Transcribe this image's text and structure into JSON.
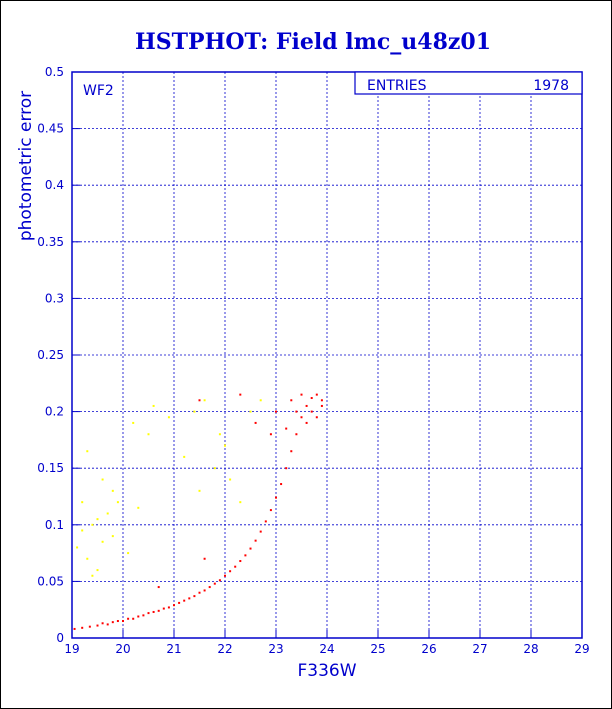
{
  "chart_data": {
    "type": "scatter",
    "title": "HSTPHOT: Field lmc_u48z01",
    "xlabel": "F336W",
    "ylabel": "photometric error",
    "panel_label": "WF2",
    "stats": {
      "label": "ENTRIES",
      "value": "1978"
    },
    "xlim": [
      19,
      29
    ],
    "ylim": [
      0,
      0.5
    ],
    "x_ticks": [
      "19",
      "20",
      "21",
      "22",
      "23",
      "24",
      "25",
      "26",
      "27",
      "28",
      "29"
    ],
    "y_ticks": [
      "0",
      "0.05",
      "0.1",
      "0.15",
      "0.2",
      "0.25",
      "0.3",
      "0.35",
      "0.4",
      "0.45",
      "0.5"
    ],
    "grid": true,
    "series": [
      {
        "color": "#ff0000",
        "points": [
          [
            19.05,
            0.008
          ],
          [
            19.2,
            0.009
          ],
          [
            19.35,
            0.01
          ],
          [
            19.5,
            0.011
          ],
          [
            19.6,
            0.013
          ],
          [
            19.7,
            0.012
          ],
          [
            19.8,
            0.014
          ],
          [
            19.9,
            0.015
          ],
          [
            20.0,
            0.015
          ],
          [
            20.1,
            0.017
          ],
          [
            20.2,
            0.017
          ],
          [
            20.3,
            0.019
          ],
          [
            20.4,
            0.02
          ],
          [
            20.5,
            0.022
          ],
          [
            20.6,
            0.023
          ],
          [
            20.7,
            0.024
          ],
          [
            20.8,
            0.026
          ],
          [
            20.9,
            0.027
          ],
          [
            21.0,
            0.029
          ],
          [
            21.1,
            0.031
          ],
          [
            21.2,
            0.033
          ],
          [
            21.3,
            0.035
          ],
          [
            21.4,
            0.037
          ],
          [
            21.5,
            0.04
          ],
          [
            21.6,
            0.042
          ],
          [
            21.7,
            0.045
          ],
          [
            21.8,
            0.048
          ],
          [
            21.9,
            0.051
          ],
          [
            22.0,
            0.055
          ],
          [
            22.1,
            0.059
          ],
          [
            22.2,
            0.063
          ],
          [
            22.3,
            0.068
          ],
          [
            22.4,
            0.073
          ],
          [
            22.5,
            0.079
          ],
          [
            22.6,
            0.086
          ],
          [
            22.7,
            0.094
          ],
          [
            22.8,
            0.103
          ],
          [
            22.9,
            0.113
          ],
          [
            23.0,
            0.124
          ],
          [
            23.1,
            0.136
          ],
          [
            23.2,
            0.15
          ],
          [
            23.3,
            0.165
          ],
          [
            23.4,
            0.18
          ],
          [
            23.5,
            0.195
          ],
          [
            23.6,
            0.205
          ],
          [
            23.7,
            0.212
          ],
          [
            23.8,
            0.215
          ],
          [
            23.9,
            0.21
          ],
          [
            23.3,
            0.21
          ],
          [
            23.5,
            0.215
          ],
          [
            23.7,
            0.2
          ],
          [
            23.9,
            0.205
          ],
          [
            23.4,
            0.2
          ],
          [
            23.6,
            0.19
          ],
          [
            23.2,
            0.185
          ],
          [
            23.8,
            0.195
          ],
          [
            21.5,
            0.21
          ],
          [
            22.3,
            0.215
          ],
          [
            22.0,
            0.17
          ],
          [
            22.9,
            0.18
          ],
          [
            20.7,
            0.045
          ],
          [
            21.6,
            0.07
          ],
          [
            22.6,
            0.19
          ],
          [
            23.0,
            0.2
          ]
        ]
      },
      {
        "color": "#ffff00",
        "points": [
          [
            19.1,
            0.08
          ],
          [
            19.2,
            0.12
          ],
          [
            19.3,
            0.165
          ],
          [
            19.4,
            0.1
          ],
          [
            19.5,
            0.06
          ],
          [
            19.6,
            0.14
          ],
          [
            19.7,
            0.11
          ],
          [
            19.8,
            0.09
          ],
          [
            19.9,
            0.12
          ],
          [
            19.3,
            0.07
          ],
          [
            19.2,
            0.095
          ],
          [
            19.6,
            0.085
          ],
          [
            19.5,
            0.105
          ],
          [
            20.1,
            0.075
          ],
          [
            20.3,
            0.115
          ],
          [
            20.5,
            0.18
          ],
          [
            20.6,
            0.205
          ],
          [
            20.9,
            0.195
          ],
          [
            21.2,
            0.16
          ],
          [
            21.4,
            0.2
          ],
          [
            21.6,
            0.21
          ],
          [
            21.8,
            0.15
          ],
          [
            22.0,
            0.17
          ],
          [
            22.1,
            0.14
          ],
          [
            22.3,
            0.12
          ],
          [
            22.5,
            0.2
          ],
          [
            21.5,
            0.13
          ],
          [
            21.9,
            0.18
          ],
          [
            22.7,
            0.21
          ],
          [
            20.2,
            0.19
          ],
          [
            19.8,
            0.13
          ],
          [
            19.4,
            0.055
          ]
        ]
      }
    ]
  }
}
